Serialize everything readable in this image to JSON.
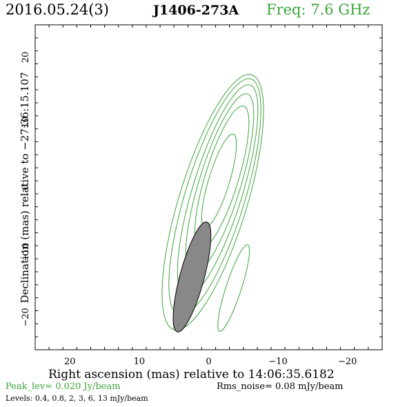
{
  "header": {
    "date": "2016.05.24(3)",
    "source": "J1406-273A",
    "frequency": "Freq: 7.6 GHz"
  },
  "footer": {
    "peak": "Peak_lev=  0.020 Jy/beam",
    "rms": "Rms_noise= 0.08 mJy/beam",
    "levels": "Levels: 0.4, 0.8,   2,   3,   6,  13 mJy/beam"
  },
  "colors": {
    "contour": "#3aa53a",
    "beam_fill": "#888888",
    "axes": "#000000"
  },
  "chart_data": {
    "type": "contour",
    "xlabel": "Right ascension (mas) relative to 14:06:35.6182",
    "ylabel": "Declination (mas) relative to −27:36:15.107",
    "xlim": [
      25,
      -25
    ],
    "ylim": [
      -25,
      25
    ],
    "x_ticks": [
      20,
      10,
      0,
      -10,
      -20
    ],
    "y_ticks": [
      20,
      10,
      0,
      -10,
      -20
    ],
    "x_tick_labels": [
      "20",
      "10",
      "0",
      "−10",
      "−20"
    ],
    "y_tick_labels": [
      "20",
      "10",
      "0",
      "−10",
      "−20"
    ],
    "contour_levels_mJy": [
      0.4,
      0.8,
      2,
      3,
      6,
      13
    ],
    "contours": [
      {
        "level": 0.4,
        "cx": -0.6,
        "cy": -2.3,
        "a": 20.5,
        "b": 4.9,
        "pa": 17
      },
      {
        "level": 0.8,
        "cx": -0.9,
        "cy": -1.5,
        "a": 19.0,
        "b": 4.3,
        "pa": 17
      },
      {
        "level": 2,
        "cx": -1.3,
        "cy": -0.5,
        "a": 17.0,
        "b": 3.6,
        "pa": 17
      },
      {
        "level": 3,
        "cx": -1.6,
        "cy": 0.5,
        "a": 14.5,
        "b": 3.0,
        "pa": 17
      },
      {
        "level": 6,
        "cx": -1.9,
        "cy": 1.5,
        "a": 11.5,
        "b": 2.4,
        "pa": 17
      },
      {
        "level": 13,
        "cx": -1.5,
        "cy": 1.0,
        "a": 7.5,
        "b": 1.5,
        "pa": 17
      },
      {
        "level": 0.4,
        "cx": -3.6,
        "cy": -15.5,
        "a": 7.0,
        "b": 1.1,
        "pa": 18
      }
    ],
    "beam": {
      "cx": 2.4,
      "cy": -13.8,
      "major": 17.5,
      "minor": 3.5,
      "pa": 15
    }
  }
}
